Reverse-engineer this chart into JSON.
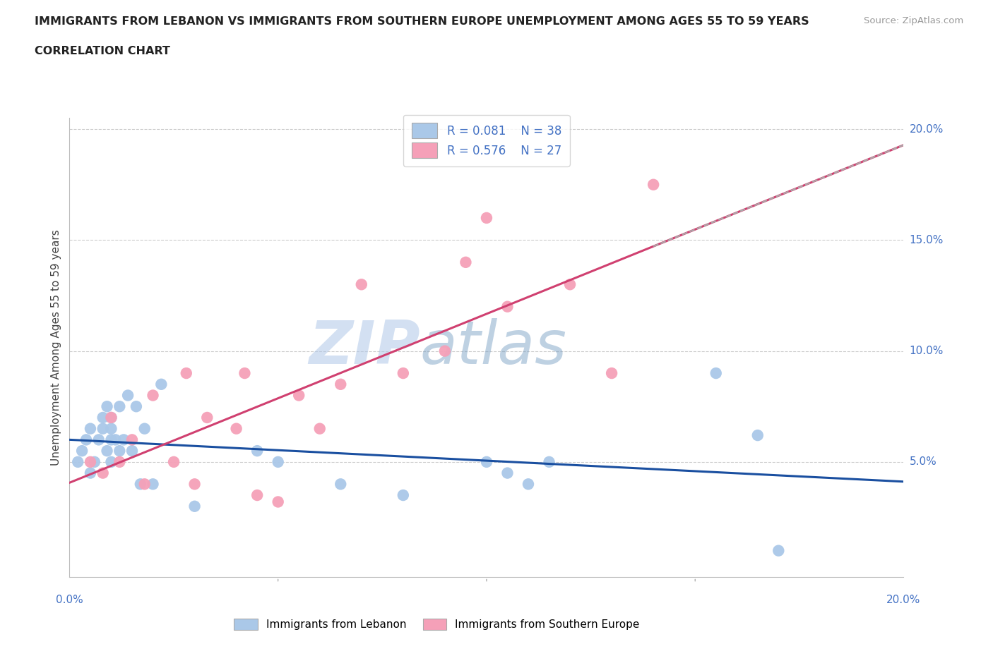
{
  "title_line1": "IMMIGRANTS FROM LEBANON VS IMMIGRANTS FROM SOUTHERN EUROPE UNEMPLOYMENT AMONG AGES 55 TO 59 YEARS",
  "title_line2": "CORRELATION CHART",
  "source": "Source: ZipAtlas.com",
  "ylabel": "Unemployment Among Ages 55 to 59 years",
  "xlim": [
    0.0,
    0.2
  ],
  "ylim": [
    -0.002,
    0.205
  ],
  "ytick_vals": [
    0.05,
    0.1,
    0.15,
    0.2
  ],
  "ytick_labels": [
    "5.0%",
    "10.0%",
    "15.0%",
    "20.0%"
  ],
  "lebanon_color": "#aac8e8",
  "lebanon_line_color": "#1a4fa0",
  "southern_europe_color": "#f5a0b8",
  "southern_europe_line_color": "#d04070",
  "lebanon_R": 0.081,
  "lebanon_N": 38,
  "southern_europe_R": 0.576,
  "southern_europe_N": 27,
  "watermark_zip": "ZIP",
  "watermark_atlas": "atlas",
  "lebanon_x": [
    0.002,
    0.003,
    0.004,
    0.005,
    0.005,
    0.006,
    0.007,
    0.008,
    0.008,
    0.009,
    0.009,
    0.01,
    0.01,
    0.01,
    0.01,
    0.011,
    0.012,
    0.012,
    0.013,
    0.014,
    0.015,
    0.016,
    0.017,
    0.018,
    0.02,
    0.022,
    0.03,
    0.045,
    0.05,
    0.065,
    0.08,
    0.1,
    0.105,
    0.11,
    0.115,
    0.155,
    0.165,
    0.17
  ],
  "lebanon_y": [
    0.05,
    0.055,
    0.06,
    0.045,
    0.065,
    0.05,
    0.06,
    0.065,
    0.07,
    0.055,
    0.075,
    0.05,
    0.06,
    0.065,
    0.07,
    0.06,
    0.055,
    0.075,
    0.06,
    0.08,
    0.055,
    0.075,
    0.04,
    0.065,
    0.04,
    0.085,
    0.03,
    0.055,
    0.05,
    0.04,
    0.035,
    0.05,
    0.045,
    0.04,
    0.05,
    0.09,
    0.062,
    0.01
  ],
  "southern_europe_x": [
    0.005,
    0.008,
    0.01,
    0.012,
    0.015,
    0.018,
    0.02,
    0.025,
    0.028,
    0.03,
    0.033,
    0.04,
    0.042,
    0.045,
    0.05,
    0.055,
    0.06,
    0.065,
    0.07,
    0.08,
    0.09,
    0.095,
    0.1,
    0.105,
    0.12,
    0.13,
    0.14
  ],
  "southern_europe_y": [
    0.05,
    0.045,
    0.07,
    0.05,
    0.06,
    0.04,
    0.08,
    0.05,
    0.09,
    0.04,
    0.07,
    0.065,
    0.09,
    0.035,
    0.032,
    0.08,
    0.065,
    0.085,
    0.13,
    0.09,
    0.1,
    0.14,
    0.16,
    0.12,
    0.13,
    0.09,
    0.175
  ]
}
